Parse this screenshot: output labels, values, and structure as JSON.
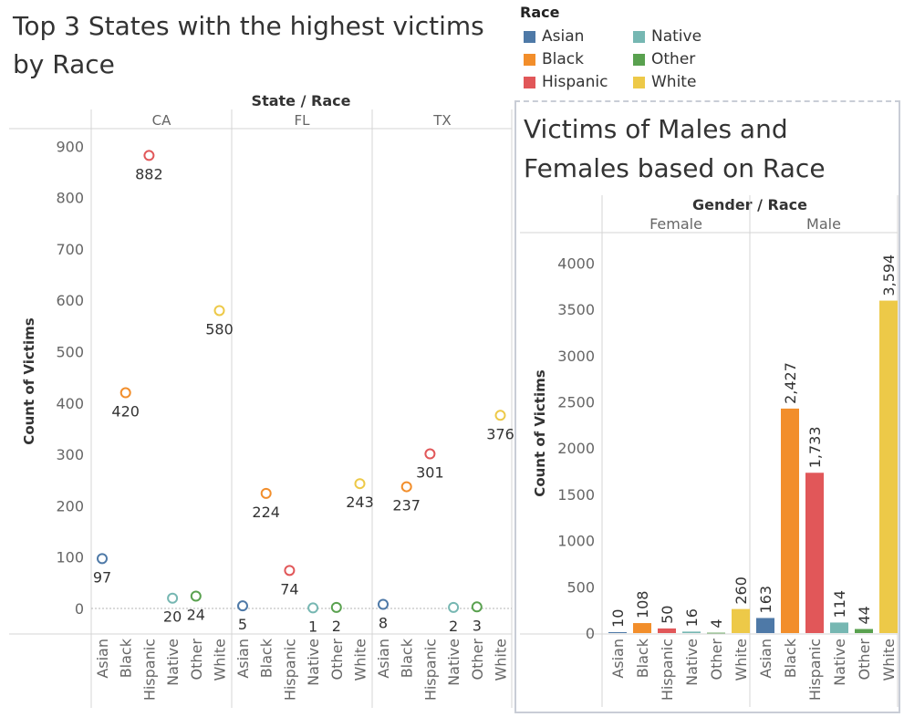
{
  "left_chart": {
    "title": "Top 3 States with the highest victims by Race",
    "header": "State / Race",
    "ylabel": "Count of Victims"
  },
  "legend": {
    "title": "Race",
    "items": [
      {
        "label": "Asian",
        "color": "#4e79a7"
      },
      {
        "label": "Native",
        "color": "#76b7b2"
      },
      {
        "label": "Black",
        "color": "#f28e2b"
      },
      {
        "label": "Other",
        "color": "#59a14f"
      },
      {
        "label": "Hispanic",
        "color": "#e15759"
      },
      {
        "label": "White",
        "color": "#edc948"
      }
    ]
  },
  "right_chart": {
    "title": "Victims of Males and Females based on Race",
    "header": "Gender / Race",
    "ylabel": "Count of Victims"
  },
  "chart_data": [
    {
      "type": "scatter",
      "title": "Top 3 States with the highest victims by Race",
      "column_header": "State / Race",
      "ylabel": "Count of Victims",
      "ylim": [
        -50,
        950
      ],
      "yticks": [
        0,
        100,
        200,
        300,
        400,
        500,
        600,
        700,
        800,
        900
      ],
      "categories": [
        "Asian",
        "Black",
        "Hispanic",
        "Native",
        "Other",
        "White"
      ],
      "colors": [
        "#4e79a7",
        "#f28e2b",
        "#e15759",
        "#76b7b2",
        "#59a14f",
        "#edc948"
      ],
      "groups": [
        {
          "name": "CA",
          "values": [
            97,
            420,
            882,
            20,
            24,
            580
          ]
        },
        {
          "name": "FL",
          "values": [
            5,
            224,
            74,
            1,
            2,
            243
          ]
        },
        {
          "name": "TX",
          "values": [
            8,
            237,
            301,
            2,
            3,
            376
          ]
        }
      ]
    },
    {
      "type": "bar",
      "title": "Victims of Males and Females based on Race",
      "column_header": "Gender / Race",
      "ylabel": "Count of Victims",
      "ylim": [
        -100,
        4300
      ],
      "yticks": [
        0,
        500,
        1000,
        1500,
        2000,
        2500,
        3000,
        3500,
        4000
      ],
      "ytick_labels": [
        "0",
        "500",
        "1000",
        "1500",
        "2000",
        "2500",
        "3000",
        "3500",
        "4000"
      ],
      "categories": [
        "Asian",
        "Black",
        "Hispanic",
        "Native",
        "Other",
        "White"
      ],
      "colors": [
        "#4e79a7",
        "#f28e2b",
        "#e15759",
        "#76b7b2",
        "#59a14f",
        "#edc948"
      ],
      "groups": [
        {
          "name": "Female",
          "values": [
            10,
            108,
            50,
            16,
            4,
            260
          ],
          "labels": [
            "10",
            "108",
            "50",
            "16",
            "4",
            "260"
          ]
        },
        {
          "name": "Male",
          "values": [
            163,
            2427,
            1733,
            114,
            44,
            3594
          ],
          "labels": [
            "163",
            "2,427",
            "1,733",
            "114",
            "44",
            "3,594"
          ]
        }
      ]
    }
  ]
}
